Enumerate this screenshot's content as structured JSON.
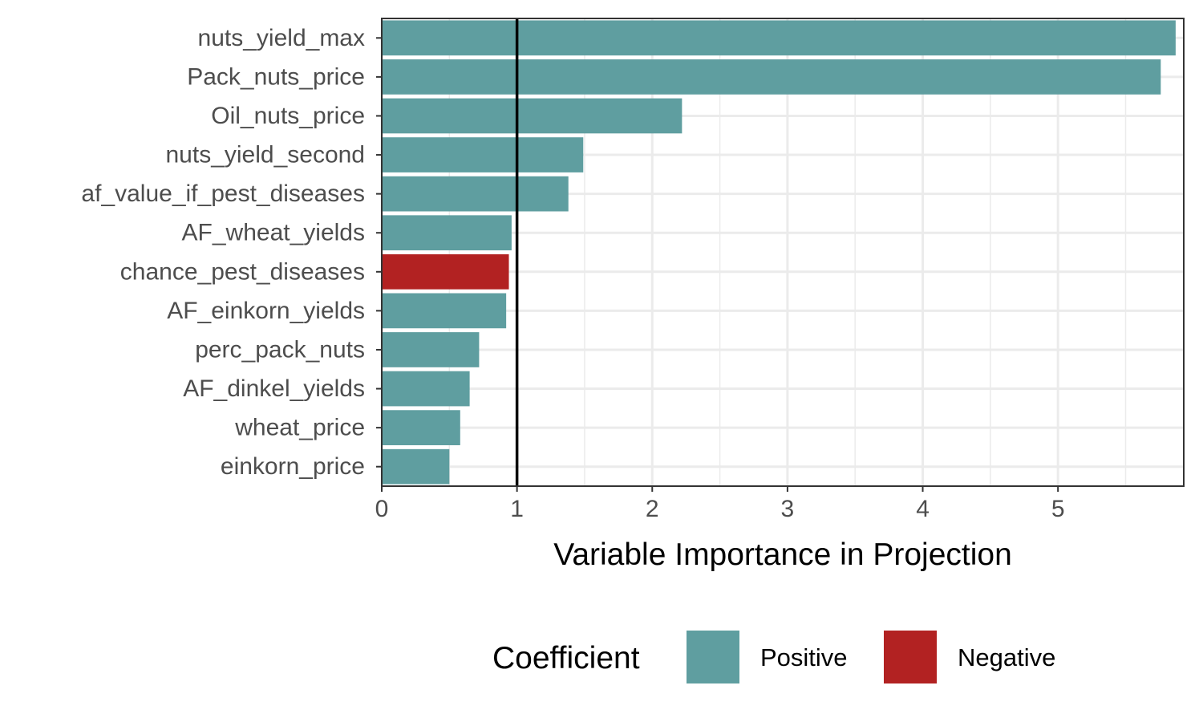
{
  "chart_data": {
    "type": "bar",
    "orientation": "horizontal",
    "categories": [
      "nuts_yield_max",
      "Pack_nuts_price",
      "Oil_nuts_price",
      "nuts_yield_second",
      "af_value_if_pest_diseases",
      "AF_wheat_yields",
      "chance_pest_diseases",
      "AF_einkorn_yields",
      "perc_pack_nuts",
      "AF_dinkel_yields",
      "wheat_price",
      "einkorn_price"
    ],
    "values": [
      5.87,
      5.76,
      2.22,
      1.49,
      1.38,
      0.96,
      0.94,
      0.92,
      0.72,
      0.65,
      0.58,
      0.5
    ],
    "coefficient": [
      "Positive",
      "Positive",
      "Positive",
      "Positive",
      "Positive",
      "Positive",
      "Negative",
      "Positive",
      "Positive",
      "Positive",
      "Positive",
      "Positive"
    ],
    "xlabel": "Variable Importance in Projection",
    "xlim": [
      0,
      5.93
    ],
    "xticks": [
      0,
      1,
      2,
      3,
      4,
      5
    ],
    "reference_line": 1,
    "grid": true,
    "legend": {
      "title": "Coefficient",
      "placement": "bottom",
      "entries": [
        {
          "label": "Positive",
          "color": "#5f9ea0"
        },
        {
          "label": "Negative",
          "color": "#b22222"
        }
      ]
    }
  },
  "colors": {
    "positive": "#5f9ea0",
    "negative": "#b22222",
    "grid": "#ebebeb",
    "panel_border": "#333333",
    "reference_line": "#000000"
  }
}
